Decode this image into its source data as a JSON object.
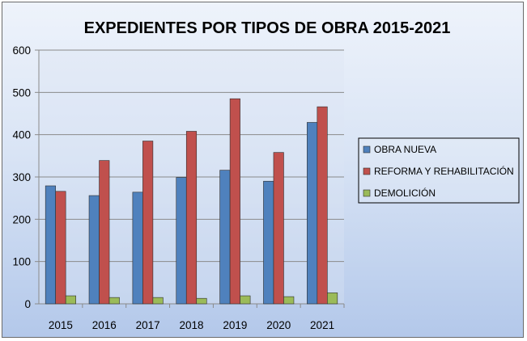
{
  "chart_data": {
    "type": "bar",
    "title": "EXPEDIENTES POR TIPOS DE OBRA 2015-2021",
    "xlabel": "",
    "ylabel": "",
    "categories": [
      "2015",
      "2016",
      "2017",
      "2018",
      "2019",
      "2020",
      "2021"
    ],
    "ylim": [
      0,
      600
    ],
    "yticks": [
      0,
      100,
      200,
      300,
      400,
      500,
      600
    ],
    "grid": true,
    "legend_position": "right",
    "series": [
      {
        "name": "OBRA NUEVA",
        "color": "#4f81bd",
        "values": [
          279,
          256,
          264,
          299,
          316,
          290,
          429
        ]
      },
      {
        "name": "REFORMA Y REHABILITACIÓN",
        "color": "#c0504d",
        "values": [
          266,
          339,
          385,
          408,
          485,
          358,
          466
        ]
      },
      {
        "name": "DEMOLICIÓN",
        "color": "#9bbb59",
        "values": [
          19,
          15,
          15,
          13,
          19,
          17,
          26
        ]
      }
    ]
  }
}
